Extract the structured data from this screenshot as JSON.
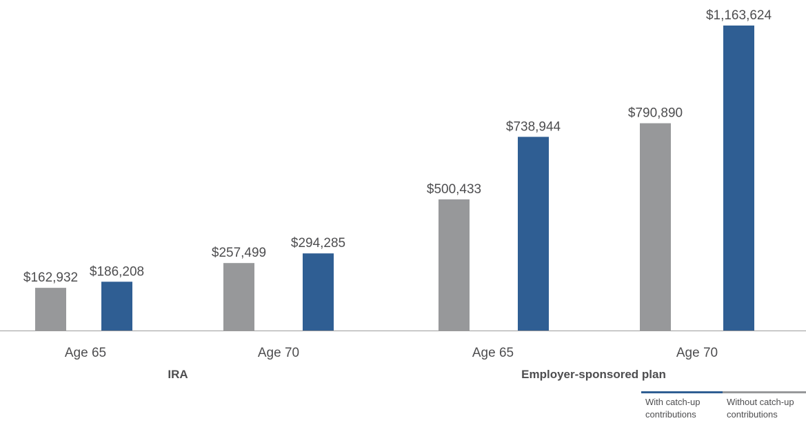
{
  "chart_data": {
    "type": "bar",
    "groups": [
      {
        "name": "IRA",
        "categories": [
          "Age 65",
          "Age 70"
        ]
      },
      {
        "name": "Employer-sponsored plan",
        "categories": [
          "Age 65",
          "Age 70"
        ]
      }
    ],
    "categories": [
      "Age 65",
      "Age 70",
      "Age 65",
      "Age 70"
    ],
    "series": [
      {
        "name": "Without catch-up contributions",
        "color": "#97989a",
        "values": [
          162932,
          257499,
          500433,
          790890
        ],
        "labels": [
          "$162,932",
          "$257,499",
          "$500,433",
          "$790,890"
        ]
      },
      {
        "name": "With catch-up contributions",
        "color": "#2f5e93",
        "values": [
          186208,
          294285,
          738944,
          1163624
        ],
        "labels": [
          "$186,208",
          "$294,285",
          "$738,944",
          "$1,163,624"
        ]
      }
    ],
    "legend": {
      "position": "bottom-right",
      "entries": [
        {
          "line1": "With catch-up",
          "line2": "contributions",
          "color": "#2f5e93"
        },
        {
          "line1": "Without catch-up",
          "line2": "contributions",
          "color": "#97989a"
        }
      ]
    },
    "ylim": [
      0,
      1200000
    ],
    "grid": false,
    "axis_color": "#9c9c9c"
  }
}
